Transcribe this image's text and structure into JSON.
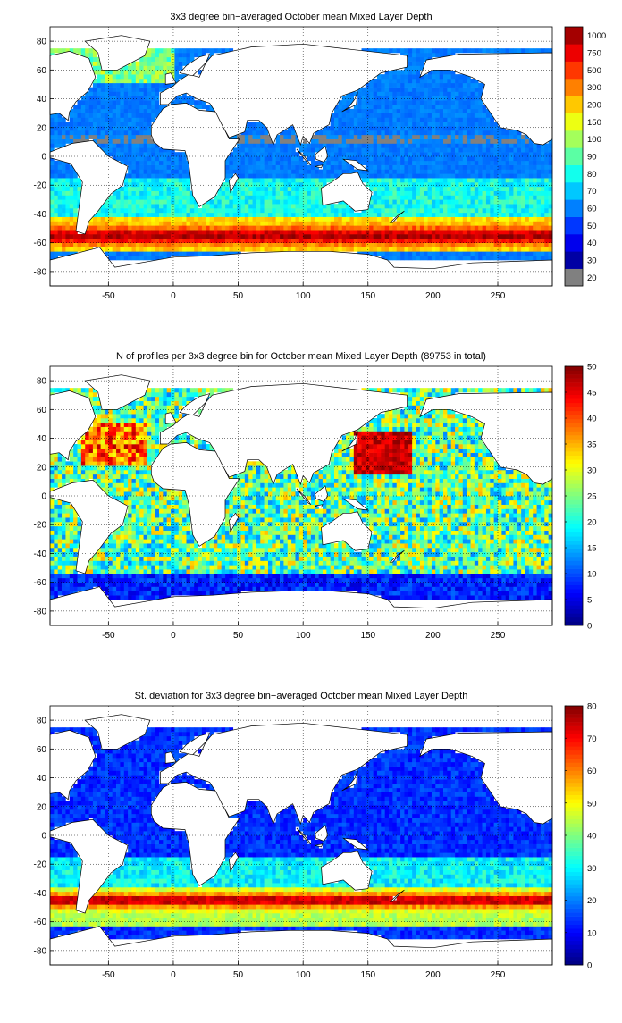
{
  "panels": [
    {
      "id": "mld",
      "title": "3x3 degree bin−averaged October mean Mixed Layer Depth",
      "colorbar_ticks": [
        "20",
        "30",
        "40",
        "50",
        "60",
        "70",
        "80",
        "90",
        "100",
        "150",
        "200",
        "300",
        "500",
        "750",
        "1000"
      ],
      "map_style": "mld"
    },
    {
      "id": "count",
      "title": "N of profiles per 3x3 degree bin for October mean Mixed Layer Depth  (89753 in total)",
      "colorbar_ticks": [
        "0",
        "5",
        "10",
        "15",
        "20",
        "25",
        "30",
        "35",
        "40",
        "45",
        "50"
      ],
      "map_style": "count"
    },
    {
      "id": "std",
      "title": "St. deviation for 3x3 degree bin−averaged October mean Mixed Layer Depth",
      "colorbar_ticks": [
        "0",
        "10",
        "20",
        "30",
        "40",
        "50",
        "60",
        "70",
        "80"
      ],
      "map_style": "std"
    }
  ],
  "axes": {
    "x_ticks": [
      "-50",
      "0",
      "50",
      "100",
      "150",
      "200",
      "250"
    ],
    "y_ticks": [
      "80",
      "60",
      "40",
      "20",
      "0",
      "-20",
      "-40",
      "-60",
      "-80"
    ],
    "xlim": [
      -95,
      292
    ],
    "ylim": [
      -90,
      90
    ]
  },
  "colors": {
    "missing": "#808080",
    "land": "#ffffff",
    "coast": "#000000"
  }
}
